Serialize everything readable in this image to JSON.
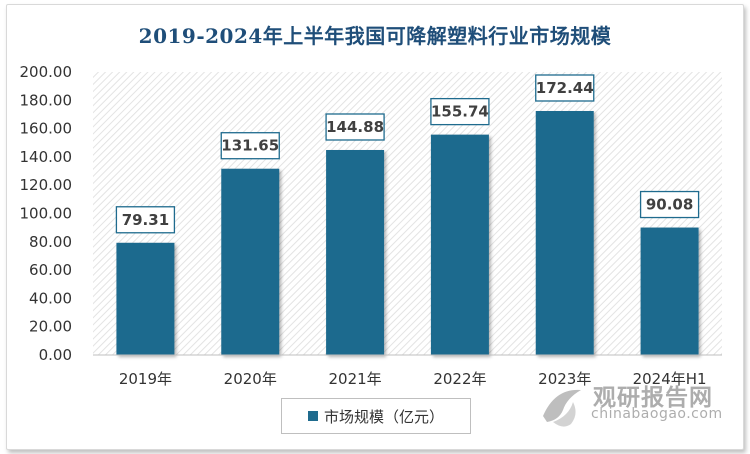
{
  "chart_data": {
    "type": "bar",
    "title": "2019-2024年上半年我国可降解塑料行业市场规模",
    "categories": [
      "2019年",
      "2020年",
      "2021年",
      "2022年",
      "2023年",
      "2024年H1"
    ],
    "series": [
      {
        "name": "市场规模（亿元）",
        "values": [
          79.31,
          131.65,
          144.88,
          155.74,
          172.44,
          90.08
        ]
      }
    ],
    "data_labels": [
      "79.31",
      "131.65",
      "144.88",
      "155.74",
      "172.44",
      "90.08"
    ],
    "ylim": [
      0,
      200
    ],
    "yticks": [
      "0.00",
      "20.00",
      "40.00",
      "60.00",
      "80.00",
      "100.00",
      "120.00",
      "140.00",
      "160.00",
      "180.00",
      "200.00"
    ],
    "xlabel": "",
    "ylabel": "",
    "legend_position": "bottom",
    "bar_color": "#1f6b8e",
    "background_pattern": "diagonal-hatch"
  },
  "watermark": {
    "text_cn": "观研报告网",
    "text_en": "chinabaogao.com"
  }
}
